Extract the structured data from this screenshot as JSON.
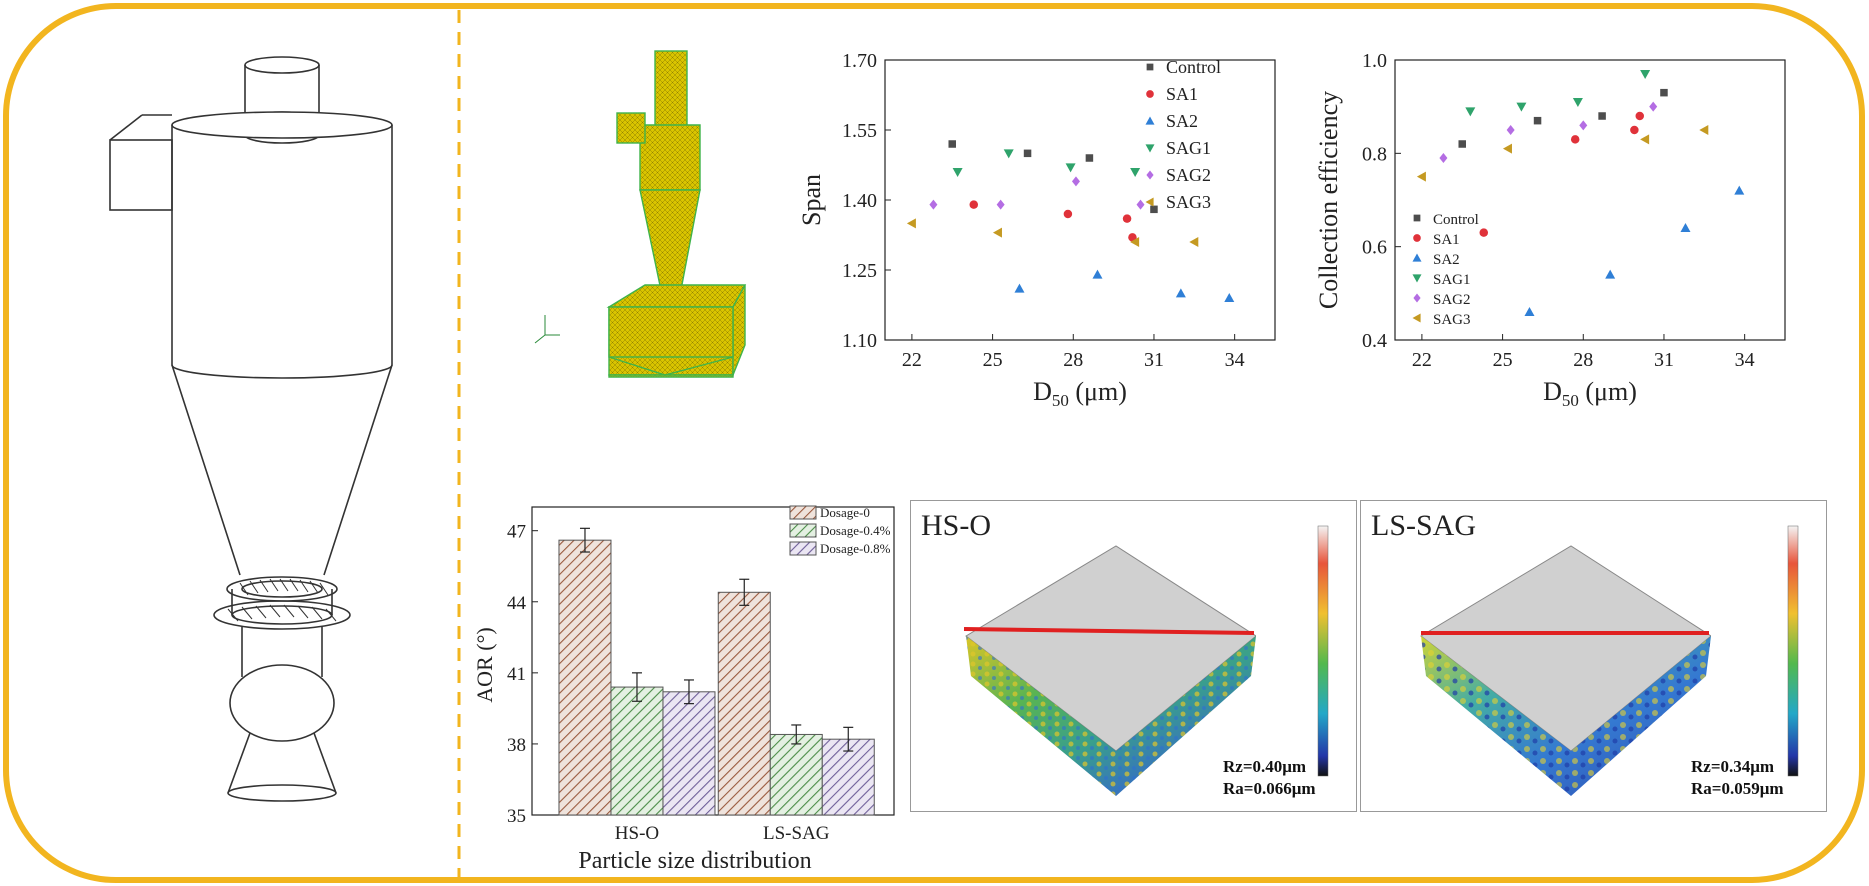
{
  "colors": {
    "frame": "#f2b51f",
    "control": "#4d4d4d",
    "sa1": "#e0323a",
    "sa2": "#2f7fd6",
    "sag1": "#2fa36b",
    "sag2": "#b46de3",
    "sag3": "#c59a22",
    "mesh": "#c8b400",
    "bar0": "#b5785d",
    "bar1": "#6aa868",
    "bar2": "#8d7bb2"
  },
  "topo": [
    {
      "label": "HS-O",
      "rz": "Rz=0.40μm",
      "ra": "Ra=0.066μm"
    },
    {
      "label": "LS-SAG",
      "rz": "Rz=0.34μm",
      "ra": "Ra=0.059μm"
    }
  ],
  "chart_data": [
    {
      "type": "scatter",
      "xlabel_main": "D",
      "xlabel_sub": "50",
      "xlabel_unit": " (μm)",
      "ylabel": "Span",
      "xlim": [
        21,
        35.5
      ],
      "ylim": [
        1.1,
        1.7
      ],
      "xticks": [
        "22",
        "25",
        "28",
        "31",
        "34"
      ],
      "yticks": [
        "1.10",
        "1.25",
        "1.40",
        "1.55",
        "1.70"
      ],
      "legend_position": "top-right",
      "series": [
        {
          "name": "Control",
          "marker": "square",
          "points": [
            [
              23.5,
              1.52
            ],
            [
              26.3,
              1.5
            ],
            [
              28.6,
              1.49
            ],
            [
              31.0,
              1.38
            ]
          ]
        },
        {
          "name": "SA1",
          "marker": "circle",
          "points": [
            [
              24.3,
              1.39
            ],
            [
              27.8,
              1.37
            ],
            [
              30.0,
              1.36
            ],
            [
              30.2,
              1.32
            ]
          ]
        },
        {
          "name": "SA2",
          "marker": "triangle-up",
          "points": [
            [
              26.0,
              1.21
            ],
            [
              28.9,
              1.24
            ],
            [
              32.0,
              1.2
            ],
            [
              33.8,
              1.19
            ]
          ]
        },
        {
          "name": "SAG1",
          "marker": "triangle-down",
          "points": [
            [
              23.7,
              1.46
            ],
            [
              25.6,
              1.5
            ],
            [
              27.9,
              1.47
            ],
            [
              30.3,
              1.46
            ]
          ]
        },
        {
          "name": "SAG2",
          "marker": "diamond",
          "points": [
            [
              22.8,
              1.39
            ],
            [
              25.3,
              1.39
            ],
            [
              28.1,
              1.44
            ],
            [
              30.5,
              1.39
            ]
          ]
        },
        {
          "name": "SAG3",
          "marker": "triangle-left",
          "points": [
            [
              22.0,
              1.35
            ],
            [
              25.2,
              1.33
            ],
            [
              30.3,
              1.31
            ],
            [
              32.5,
              1.31
            ]
          ]
        }
      ]
    },
    {
      "type": "scatter",
      "xlabel_main": "D",
      "xlabel_sub": "50",
      "xlabel_unit": " (μm)",
      "ylabel": "Collection efficiency",
      "xlim": [
        21,
        35.5
      ],
      "ylim": [
        0.4,
        1.0
      ],
      "xticks": [
        "22",
        "25",
        "28",
        "31",
        "34"
      ],
      "yticks": [
        "0.4",
        "0.6",
        "0.8",
        "1.0"
      ],
      "legend_position": "bottom-left",
      "series": [
        {
          "name": "Control",
          "marker": "square",
          "points": [
            [
              23.5,
              0.82
            ],
            [
              26.3,
              0.87
            ],
            [
              28.7,
              0.88
            ],
            [
              31.0,
              0.93
            ]
          ]
        },
        {
          "name": "SA1",
          "marker": "circle",
          "points": [
            [
              24.3,
              0.63
            ],
            [
              27.7,
              0.83
            ],
            [
              29.9,
              0.85
            ],
            [
              30.1,
              0.88
            ]
          ]
        },
        {
          "name": "SA2",
          "marker": "triangle-up",
          "points": [
            [
              26.0,
              0.46
            ],
            [
              29.0,
              0.54
            ],
            [
              31.8,
              0.64
            ],
            [
              33.8,
              0.72
            ]
          ]
        },
        {
          "name": "SAG1",
          "marker": "triangle-down",
          "points": [
            [
              23.8,
              0.89
            ],
            [
              25.7,
              0.9
            ],
            [
              27.8,
              0.91
            ],
            [
              30.3,
              0.97
            ]
          ]
        },
        {
          "name": "SAG2",
          "marker": "diamond",
          "points": [
            [
              22.8,
              0.79
            ],
            [
              25.3,
              0.85
            ],
            [
              28.0,
              0.86
            ],
            [
              30.6,
              0.9
            ]
          ]
        },
        {
          "name": "SAG3",
          "marker": "triangle-left",
          "points": [
            [
              22.0,
              0.75
            ],
            [
              25.2,
              0.81
            ],
            [
              30.3,
              0.83
            ],
            [
              32.5,
              0.85
            ]
          ]
        }
      ]
    },
    {
      "type": "bar",
      "xlabel": "Particle size distribution",
      "ylabel": "AOR (°)",
      "ylim": [
        35,
        48
      ],
      "yticks": [
        "35",
        "38",
        "41",
        "44",
        "47"
      ],
      "categories": [
        "HS-O",
        "LS-SAG"
      ],
      "legend_position": "top-right",
      "series": [
        {
          "name": "Dosage-0",
          "values": [
            46.6,
            44.4
          ],
          "errors": [
            0.5,
            0.55
          ]
        },
        {
          "name": "Dosage-0.4%",
          "values": [
            40.4,
            38.4
          ],
          "errors": [
            0.6,
            0.4
          ]
        },
        {
          "name": "Dosage-0.8%",
          "values": [
            40.2,
            38.2
          ],
          "errors": [
            0.5,
            0.5
          ]
        }
      ]
    }
  ]
}
